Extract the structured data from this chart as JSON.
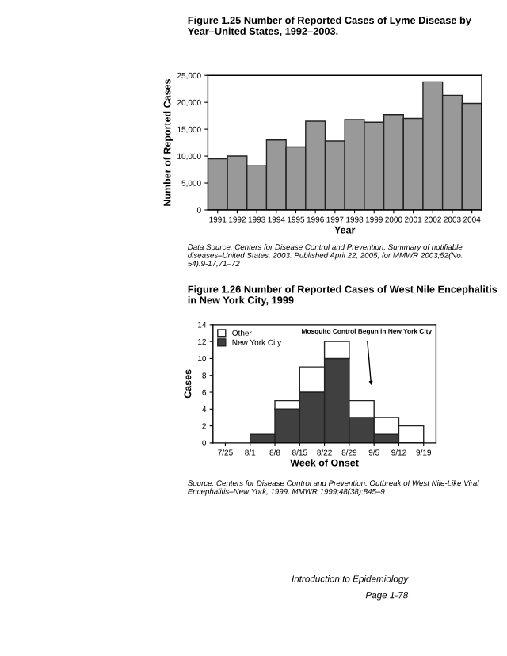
{
  "chart_data": [
    {
      "type": "bar",
      "title": "Figure 1.25 Number of Reported Cases of Lyme Disease by Year–United States, 1992–2003.",
      "xlabel": "Year",
      "ylabel": "Number of Reported Cases",
      "categories": [
        "1991",
        "1992",
        "1993",
        "1994",
        "1995",
        "1996",
        "1997",
        "1998",
        "1999",
        "2000",
        "2001",
        "2002",
        "2003",
        "2004"
      ],
      "values": [
        9500,
        10000,
        8200,
        13000,
        11700,
        16500,
        12800,
        16800,
        16300,
        17700,
        17000,
        23800,
        21300,
        19800
      ],
      "color": "#999999",
      "ylim": [
        0,
        25000
      ],
      "yticks": [
        0,
        {
          "value": 5000,
          "label": "5,000"
        },
        {
          "value": 10000,
          "label": "10,000"
        },
        {
          "value": 15000,
          "label": "15,000"
        },
        {
          "value": 20000,
          "label": "20,000"
        },
        {
          "value": 25000,
          "label": "25,000"
        }
      ],
      "annotations": [
        "Data Source: Centers for Disease Control and Prevention. Summary of notifiable diseases–United States, 2003. Published April 22, 2005, for MMWR 2003;52(No. 54):9-17,71–72"
      ]
    },
    {
      "type": "bar",
      "stacked": true,
      "title": "Figure 1.26 Number of Reported Cases of West Nile Encephalitis in New York City, 1999",
      "xlabel": "Week of Onset",
      "ylabel": "Cases",
      "legend": "top left",
      "categories": [
        "7/25",
        "8/1",
        "8/8",
        "8/15",
        "8/22",
        "8/29",
        "9/5",
        "9/12",
        "9/19"
      ],
      "series": [
        {
          "name": "New York City",
          "color": "#404040",
          "values": [
            null,
            1,
            4,
            6,
            10,
            3,
            1,
            null,
            null
          ]
        },
        {
          "name": "Other",
          "color": "#ffffff",
          "values": [
            null,
            null,
            1,
            3,
            2,
            2,
            2,
            2,
            null
          ]
        }
      ],
      "ylim": [
        0,
        14
      ],
      "yticks": [
        0,
        2,
        4,
        6,
        8,
        10,
        12,
        14
      ],
      "annotations": [
        "Mosquito Control Begun in New York City",
        "Source: Centers for Disease Control and Prevention. Outbreak of West Nile-Like Viral Encephalitis–New York, 1999. MMWR 1999;48(38):845–9",
        "Introduction to Epidemiology",
        "Page 1-78"
      ]
    }
  ]
}
